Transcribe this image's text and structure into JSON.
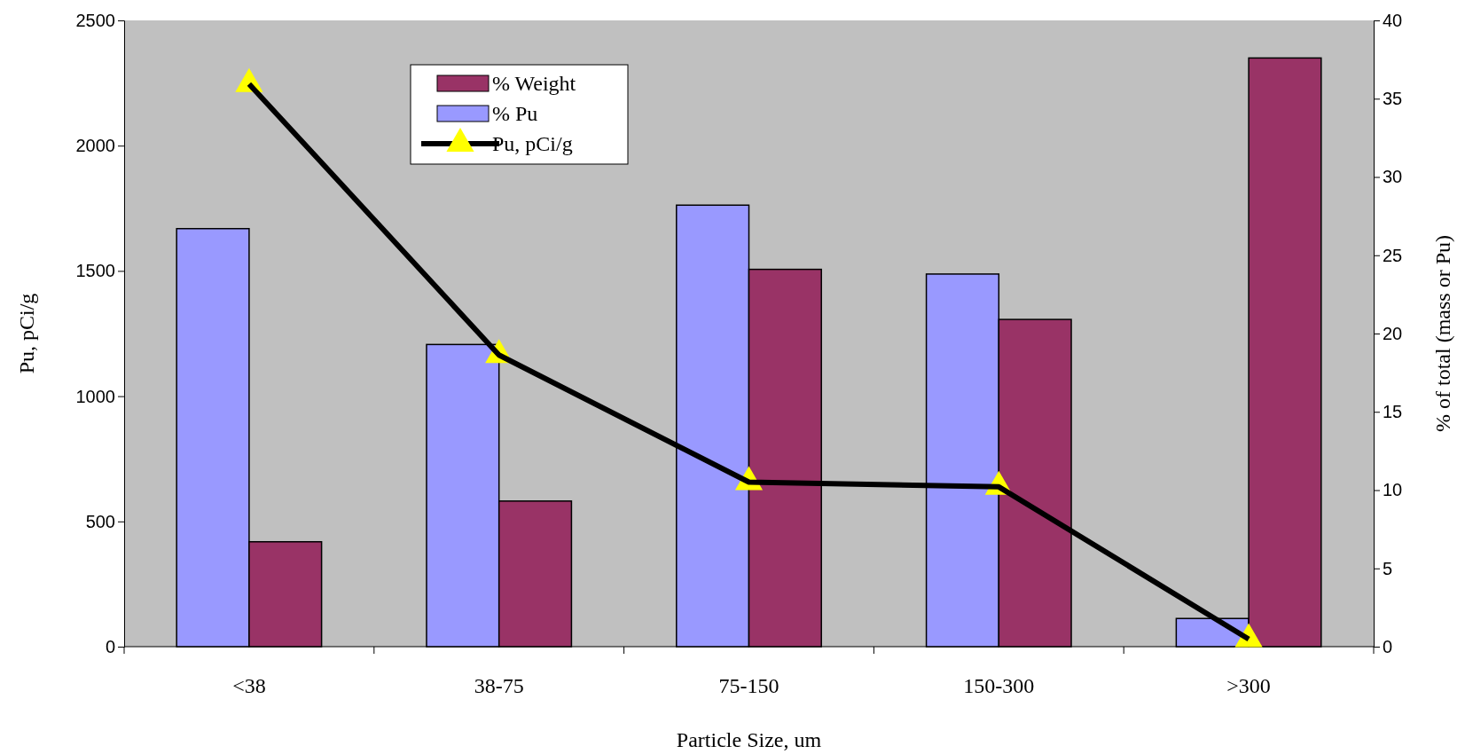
{
  "chart_data": {
    "type": "bar",
    "xlabel": "Particle Size, um",
    "ylabel": "Pu, pCi/g",
    "y2label": "% of total (mass or Pu)",
    "categories": [
      "<38",
      "38-75",
      "75-150",
      "150-300",
      ">300"
    ],
    "ylim": [
      0,
      2500
    ],
    "yticks": [
      0,
      500,
      1000,
      1500,
      2000,
      2500
    ],
    "y2lim": [
      0,
      40
    ],
    "y2ticks": [
      0,
      5,
      10,
      15,
      20,
      25,
      30,
      35,
      40
    ],
    "grid": false,
    "legend": "top left",
    "series": [
      {
        "name": "% Pu",
        "axis": "y2",
        "color": "#9999ff",
        "values": [
          26.7,
          19.3,
          28.2,
          23.8,
          1.8
        ]
      },
      {
        "name": "% Weight",
        "axis": "y2",
        "color": "#993366",
        "values": [
          6.7,
          9.3,
          24.1,
          20.9,
          37.6
        ]
      },
      {
        "name": "Pu, pCi/g",
        "type": "line",
        "axis": "y",
        "color": "#000000",
        "marker": "triangle",
        "values": [
          2246,
          1164,
          657,
          638,
          30
        ]
      }
    ]
  }
}
